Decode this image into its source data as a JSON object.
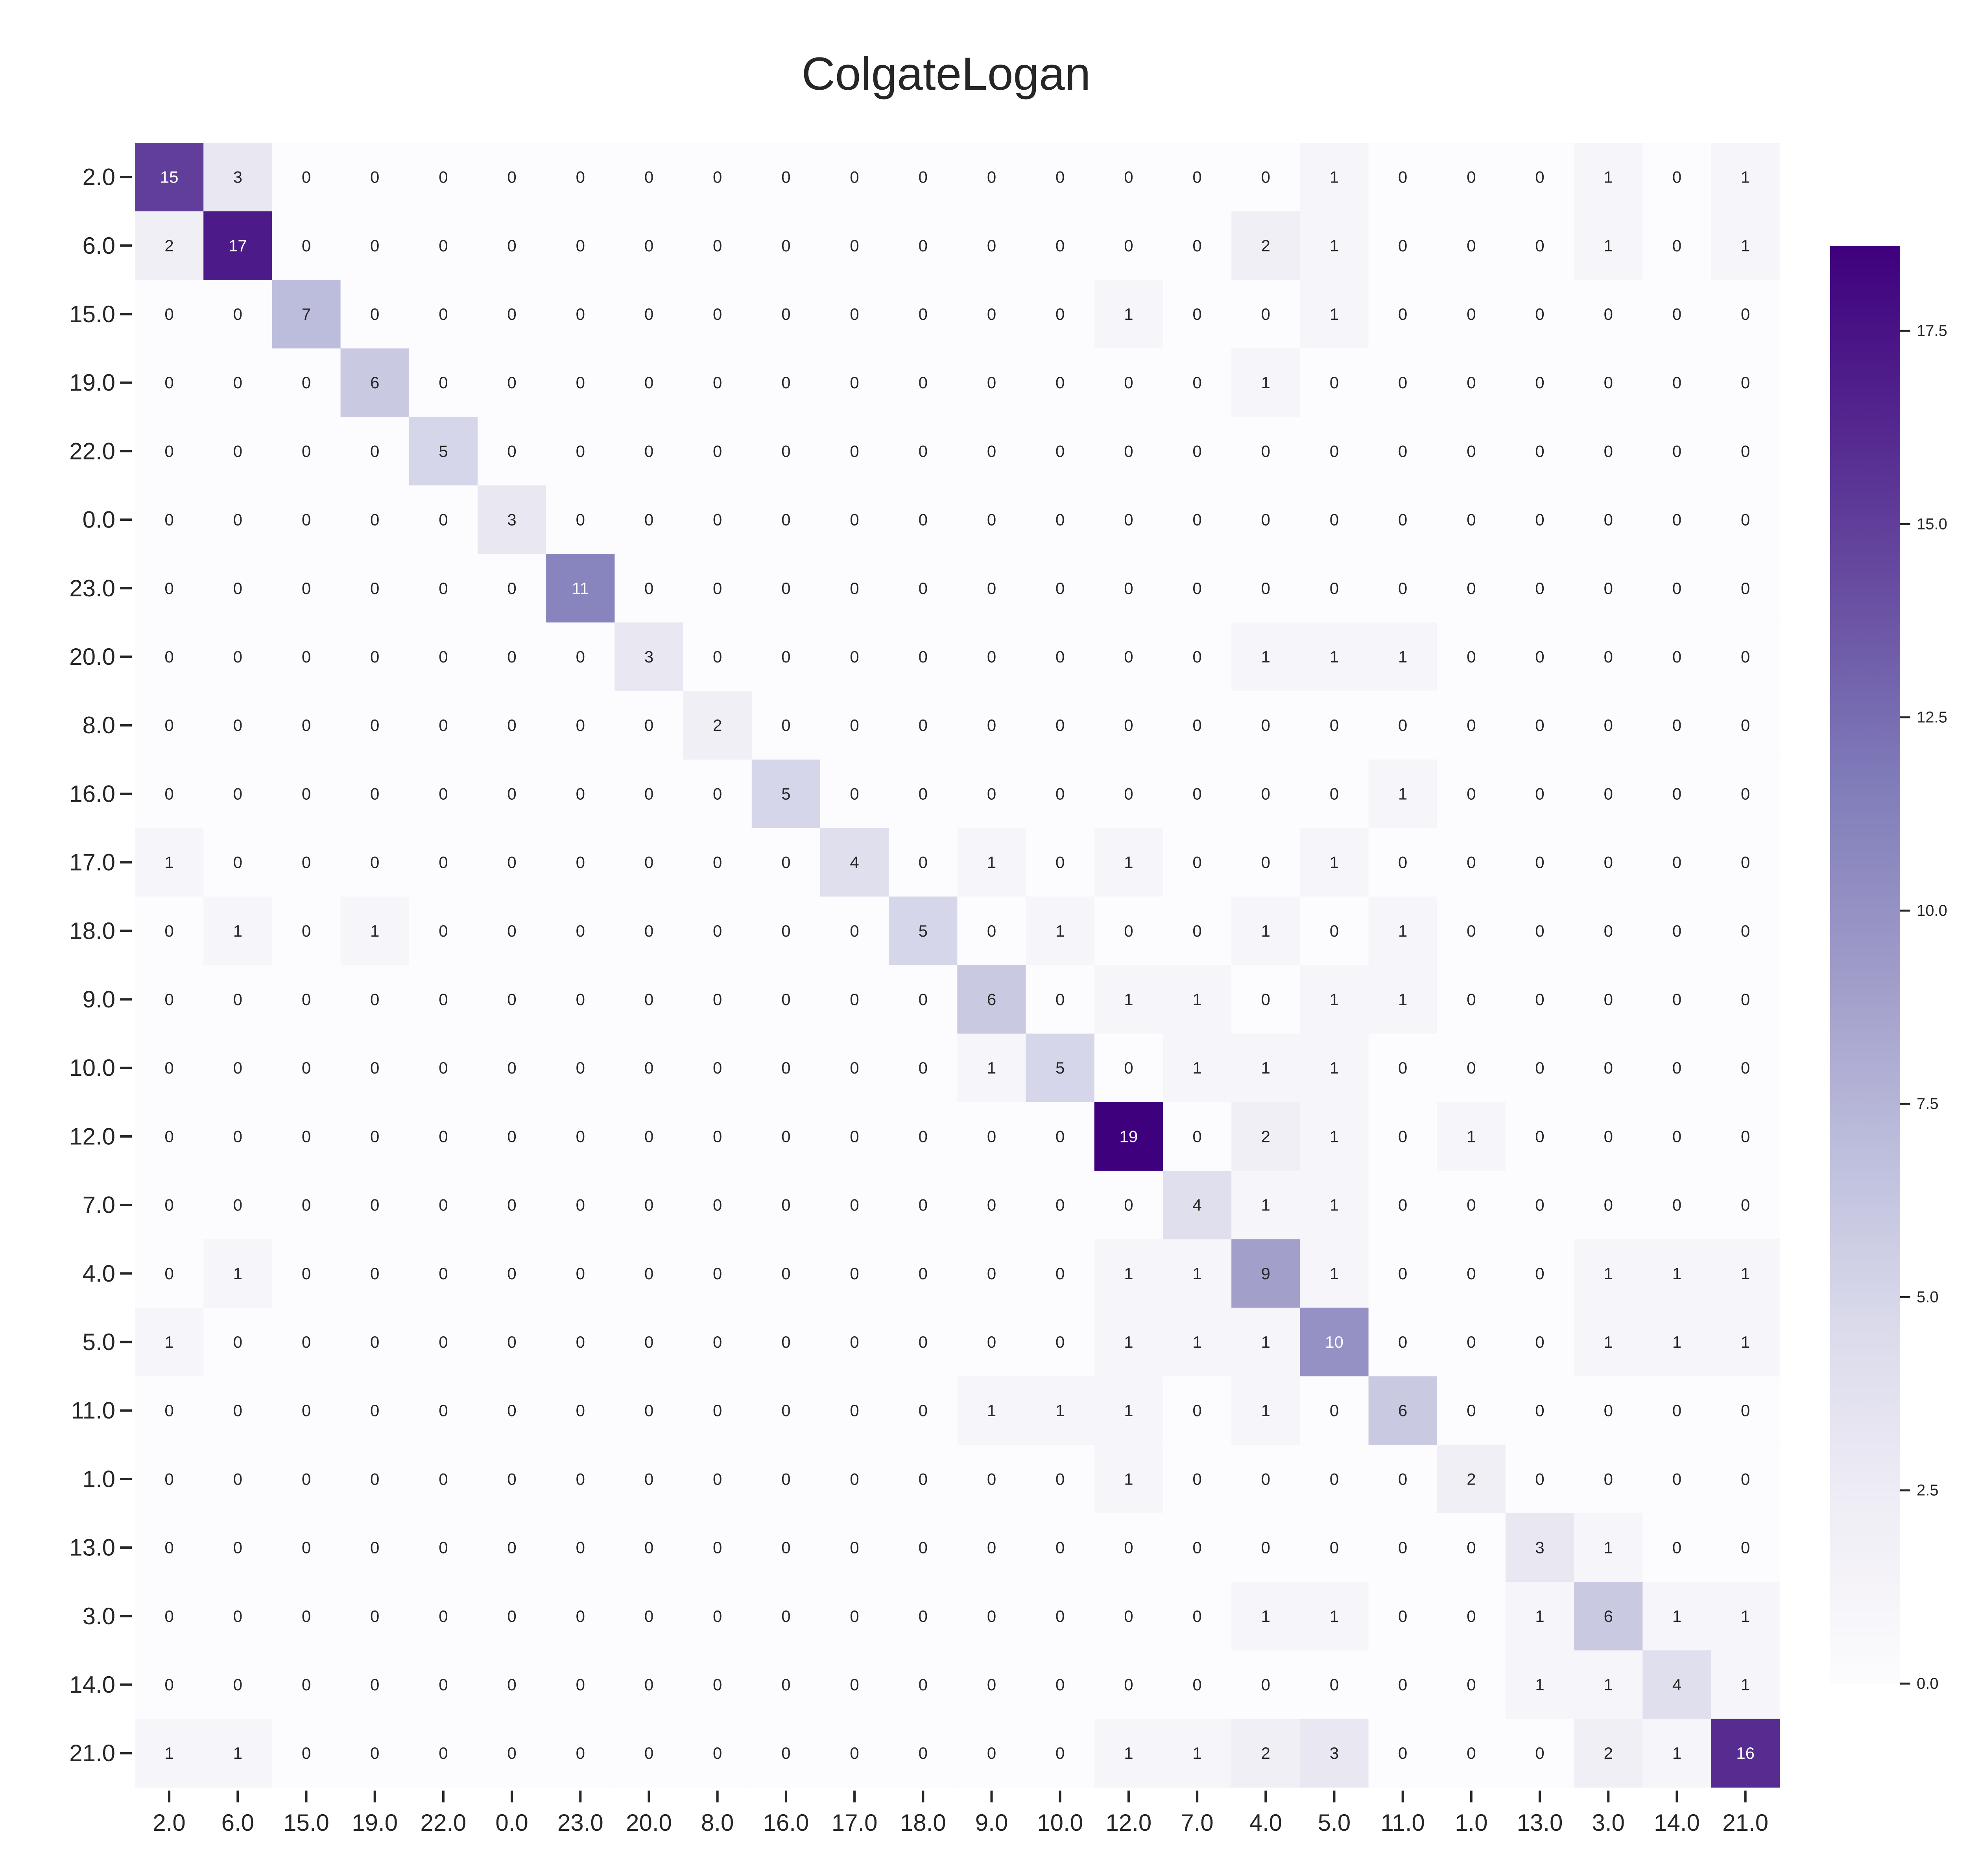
{
  "chart_data": {
    "type": "heatmap",
    "title": "ColgateLogan",
    "xlabel": "",
    "ylabel": "",
    "row_labels": [
      "2.0",
      "6.0",
      "15.0",
      "19.0",
      "22.0",
      "0.0",
      "23.0",
      "20.0",
      "8.0",
      "16.0",
      "17.0",
      "18.0",
      "9.0",
      "10.0",
      "12.0",
      "7.0",
      "4.0",
      "5.0",
      "11.0",
      "1.0",
      "13.0",
      "3.0",
      "14.0",
      "21.0"
    ],
    "col_labels": [
      "2.0",
      "6.0",
      "15.0",
      "19.0",
      "22.0",
      "0.0",
      "23.0",
      "20.0",
      "8.0",
      "16.0",
      "17.0",
      "18.0",
      "9.0",
      "10.0",
      "12.0",
      "7.0",
      "4.0",
      "5.0",
      "11.0",
      "1.0",
      "13.0",
      "3.0",
      "14.0",
      "21.0"
    ],
    "values": [
      [
        15,
        3,
        0,
        0,
        0,
        0,
        0,
        0,
        0,
        0,
        0,
        0,
        0,
        0,
        0,
        0,
        0,
        1,
        0,
        0,
        0,
        1,
        0,
        1
      ],
      [
        2,
        17,
        0,
        0,
        0,
        0,
        0,
        0,
        0,
        0,
        0,
        0,
        0,
        0,
        0,
        0,
        2,
        1,
        0,
        0,
        0,
        1,
        0,
        1
      ],
      [
        0,
        0,
        7,
        0,
        0,
        0,
        0,
        0,
        0,
        0,
        0,
        0,
        0,
        0,
        1,
        0,
        0,
        1,
        0,
        0,
        0,
        0,
        0,
        0
      ],
      [
        0,
        0,
        0,
        6,
        0,
        0,
        0,
        0,
        0,
        0,
        0,
        0,
        0,
        0,
        0,
        0,
        1,
        0,
        0,
        0,
        0,
        0,
        0,
        0
      ],
      [
        0,
        0,
        0,
        0,
        5,
        0,
        0,
        0,
        0,
        0,
        0,
        0,
        0,
        0,
        0,
        0,
        0,
        0,
        0,
        0,
        0,
        0,
        0,
        0
      ],
      [
        0,
        0,
        0,
        0,
        0,
        3,
        0,
        0,
        0,
        0,
        0,
        0,
        0,
        0,
        0,
        0,
        0,
        0,
        0,
        0,
        0,
        0,
        0,
        0
      ],
      [
        0,
        0,
        0,
        0,
        0,
        0,
        11,
        0,
        0,
        0,
        0,
        0,
        0,
        0,
        0,
        0,
        0,
        0,
        0,
        0,
        0,
        0,
        0,
        0
      ],
      [
        0,
        0,
        0,
        0,
        0,
        0,
        0,
        3,
        0,
        0,
        0,
        0,
        0,
        0,
        0,
        0,
        1,
        1,
        1,
        0,
        0,
        0,
        0,
        0
      ],
      [
        0,
        0,
        0,
        0,
        0,
        0,
        0,
        0,
        2,
        0,
        0,
        0,
        0,
        0,
        0,
        0,
        0,
        0,
        0,
        0,
        0,
        0,
        0,
        0
      ],
      [
        0,
        0,
        0,
        0,
        0,
        0,
        0,
        0,
        0,
        5,
        0,
        0,
        0,
        0,
        0,
        0,
        0,
        0,
        1,
        0,
        0,
        0,
        0,
        0
      ],
      [
        1,
        0,
        0,
        0,
        0,
        0,
        0,
        0,
        0,
        0,
        4,
        0,
        1,
        0,
        1,
        0,
        0,
        1,
        0,
        0,
        0,
        0,
        0,
        0
      ],
      [
        0,
        1,
        0,
        1,
        0,
        0,
        0,
        0,
        0,
        0,
        0,
        5,
        0,
        1,
        0,
        0,
        1,
        0,
        1,
        0,
        0,
        0,
        0,
        0
      ],
      [
        0,
        0,
        0,
        0,
        0,
        0,
        0,
        0,
        0,
        0,
        0,
        0,
        6,
        0,
        1,
        1,
        0,
        1,
        1,
        0,
        0,
        0,
        0,
        0
      ],
      [
        0,
        0,
        0,
        0,
        0,
        0,
        0,
        0,
        0,
        0,
        0,
        0,
        1,
        5,
        0,
        1,
        1,
        1,
        0,
        0,
        0,
        0,
        0,
        0
      ],
      [
        0,
        0,
        0,
        0,
        0,
        0,
        0,
        0,
        0,
        0,
        0,
        0,
        0,
        0,
        19,
        0,
        2,
        1,
        0,
        1,
        0,
        0,
        0,
        0
      ],
      [
        0,
        0,
        0,
        0,
        0,
        0,
        0,
        0,
        0,
        0,
        0,
        0,
        0,
        0,
        0,
        4,
        1,
        1,
        0,
        0,
        0,
        0,
        0,
        0
      ],
      [
        0,
        1,
        0,
        0,
        0,
        0,
        0,
        0,
        0,
        0,
        0,
        0,
        0,
        0,
        1,
        1,
        9,
        1,
        0,
        0,
        0,
        1,
        1,
        1
      ],
      [
        1,
        0,
        0,
        0,
        0,
        0,
        0,
        0,
        0,
        0,
        0,
        0,
        0,
        0,
        1,
        1,
        1,
        10,
        0,
        0,
        0,
        1,
        1,
        1
      ],
      [
        0,
        0,
        0,
        0,
        0,
        0,
        0,
        0,
        0,
        0,
        0,
        0,
        1,
        1,
        1,
        0,
        1,
        0,
        6,
        0,
        0,
        0,
        0,
        0
      ],
      [
        0,
        0,
        0,
        0,
        0,
        0,
        0,
        0,
        0,
        0,
        0,
        0,
        0,
        0,
        1,
        0,
        0,
        0,
        0,
        2,
        0,
        0,
        0,
        0
      ],
      [
        0,
        0,
        0,
        0,
        0,
        0,
        0,
        0,
        0,
        0,
        0,
        0,
        0,
        0,
        0,
        0,
        0,
        0,
        0,
        0,
        3,
        1,
        0,
        0
      ],
      [
        0,
        0,
        0,
        0,
        0,
        0,
        0,
        0,
        0,
        0,
        0,
        0,
        0,
        0,
        0,
        0,
        1,
        1,
        0,
        0,
        1,
        6,
        1,
        1
      ],
      [
        0,
        0,
        0,
        0,
        0,
        0,
        0,
        0,
        0,
        0,
        0,
        0,
        0,
        0,
        0,
        0,
        0,
        0,
        0,
        0,
        1,
        1,
        4,
        1
      ],
      [
        1,
        1,
        0,
        0,
        0,
        0,
        0,
        0,
        0,
        0,
        0,
        0,
        0,
        0,
        1,
        1,
        2,
        3,
        0,
        0,
        0,
        2,
        1,
        16
      ]
    ],
    "colorbar": {
      "min": 0,
      "max": 18.6,
      "ticks": [
        0.0,
        2.5,
        5.0,
        7.5,
        10.0,
        12.5,
        15.0,
        17.5
      ],
      "tick_labels": [
        "0.0",
        "2.5",
        "5.0",
        "7.5",
        "10.0",
        "12.5",
        "15.0",
        "17.5"
      ]
    },
    "colormap": [
      "#fcfbfd",
      "#efedf5",
      "#dadaeb",
      "#bcbddc",
      "#9e9ac8",
      "#807dba",
      "#6a51a3",
      "#54278f",
      "#3f007d"
    ],
    "annotation_colors": {
      "dark": "#262626",
      "light": "#ffffff"
    },
    "annotation_threshold": 9.3,
    "grid": false,
    "legend": "colorbar right"
  }
}
